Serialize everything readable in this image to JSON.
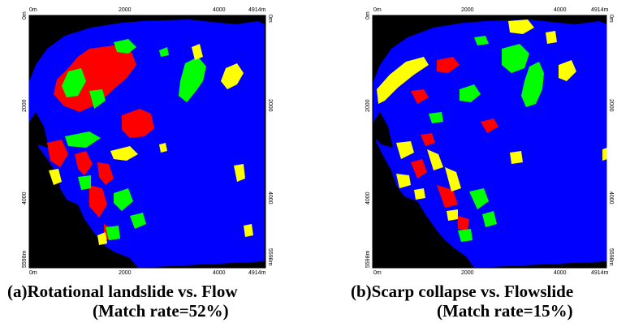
{
  "colors": {
    "background": "#000000",
    "match_area": "#0000ff",
    "class_red": "#ff0000",
    "class_green": "#00ff00",
    "class_yellow": "#ffff00",
    "frame": "#ffffff"
  },
  "panels": [
    {
      "caption_line1": "(a)Rotational landslide vs. Flow",
      "caption_line2": "(Match rate=52%)",
      "match_rate_percent": 52,
      "axis": {
        "top": [
          "0m",
          "2000",
          "4000",
          "4914m"
        ],
        "bottom": [
          "0m",
          "2000",
          "4000",
          "4914m"
        ],
        "left": [
          "0m",
          "2000",
          "4000",
          "5598m"
        ],
        "right": [
          "0m",
          "2000",
          "4000",
          "5598m"
        ]
      }
    },
    {
      "caption_line1": "(b)Scarp collapse vs. Flowslide",
      "caption_line2": "(Match rate=15%)",
      "match_rate_percent": 15,
      "axis": {
        "top": [
          "0m",
          "2000",
          "4000",
          "4914m"
        ],
        "bottom": [
          "0m",
          "2000",
          "4000",
          "4914m"
        ],
        "left": [
          "0m",
          "2000",
          "4000",
          "5598m"
        ],
        "right": [
          "0m",
          "2000",
          "4000",
          "5598m"
        ]
      }
    }
  ]
}
